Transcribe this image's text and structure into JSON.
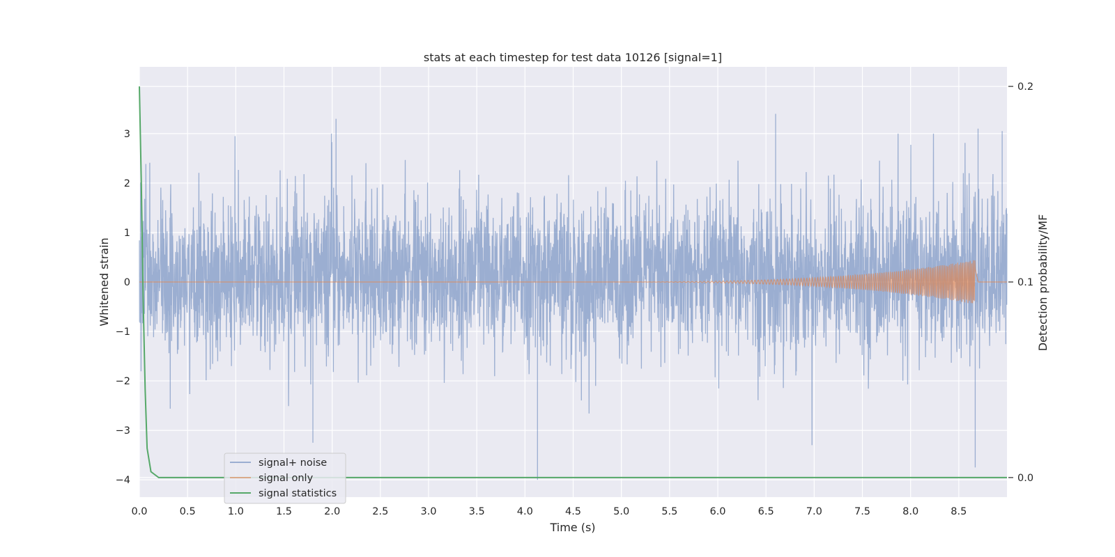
{
  "chart_data": {
    "type": "line",
    "title": "stats at each timestep for test data 10126 [signal=1]",
    "xlabel": "Time (s)",
    "ylabel": "Whitened strain",
    "y2label": "Detection probability/MF",
    "xlim": [
      0.0,
      9.0
    ],
    "ylim": [
      -4.35,
      4.35
    ],
    "y2lim": [
      -0.01,
      0.21
    ],
    "xticks": [
      "0.0",
      "0.5",
      "1.0",
      "1.5",
      "2.0",
      "2.5",
      "3.0",
      "3.5",
      "4.0",
      "4.5",
      "5.0",
      "5.5",
      "6.0",
      "6.5",
      "7.0",
      "7.5",
      "8.0",
      "8.5"
    ],
    "xtick_values": [
      0.0,
      0.5,
      1.0,
      1.5,
      2.0,
      2.5,
      3.0,
      3.5,
      4.0,
      4.5,
      5.0,
      5.5,
      6.0,
      6.5,
      7.0,
      7.5,
      8.0,
      8.5
    ],
    "yticks": [
      "3",
      "2",
      "1",
      "0",
      "−1",
      "−2",
      "−3",
      "−4"
    ],
    "ytick_values": [
      3,
      2,
      1,
      0,
      -1,
      -2,
      -3,
      -4
    ],
    "y2ticks": [
      "0.2",
      "0.1",
      "0.0"
    ],
    "y2tick_values": [
      0.2,
      0.1,
      0.0
    ],
    "grid": true,
    "legend_position": "lower-left",
    "series": [
      {
        "name": "signal+ noise",
        "color": "#4c72b0",
        "axis": "left",
        "description_values": {
          "x_range": [
            0.0,
            9.0
          ],
          "typical_range": [
            -1.8,
            2.0
          ],
          "peaks": [
            {
              "x": 2.04,
              "y": 3.3
            },
            {
              "x": 6.6,
              "y": 3.4
            },
            {
              "x": 8.7,
              "y": 3.1
            },
            {
              "x": 8.95,
              "y": 3.05
            },
            {
              "x": 1.8,
              "y": -3.25
            },
            {
              "x": 4.13,
              "y": -4.0
            },
            {
              "x": 8.67,
              "y": -3.75
            }
          ]
        }
      },
      {
        "name": "signal only",
        "color": "#dd8452",
        "axis": "left",
        "chirp": {
          "start_x": 4.5,
          "peak_x": 8.67,
          "peak_amplitude": 0.45,
          "end_x": 8.7
        }
      },
      {
        "name": "signal statistics",
        "color": "#55a868",
        "axis": "right",
        "x": [
          0.0,
          0.02,
          0.04,
          0.06,
          0.08,
          0.12,
          0.2,
          9.0
        ],
        "y": [
          0.2,
          0.15,
          0.09,
          0.045,
          0.015,
          0.003,
          0.0,
          0.0
        ]
      }
    ]
  }
}
